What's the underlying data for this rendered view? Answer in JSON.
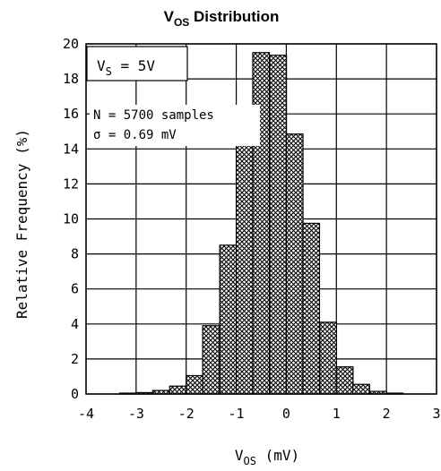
{
  "chart_data": {
    "type": "bar",
    "title": {
      "main": "V",
      "sub": "OS",
      "rest": " Distribution"
    },
    "xlabel": {
      "main": "V",
      "sub": "OS",
      "rest": " (mV)"
    },
    "ylabel": "Relative Frequency (%)",
    "xlim": [
      -4,
      3
    ],
    "ylim": [
      0,
      20
    ],
    "xticks": [
      "-4",
      "-3",
      "-2",
      "-1",
      "0",
      "1",
      "2",
      "3"
    ],
    "yticks": [
      "0",
      "2",
      "4",
      "6",
      "8",
      "10",
      "12",
      "14",
      "16",
      "18",
      "20"
    ],
    "grid": true,
    "bin_width": 0.333,
    "bins": [
      {
        "x0": -3.33,
        "value": 0.05
      },
      {
        "x0": -3.0,
        "value": 0.08
      },
      {
        "x0": -2.67,
        "value": 0.2
      },
      {
        "x0": -2.33,
        "value": 0.45
      },
      {
        "x0": -2.0,
        "value": 1.05
      },
      {
        "x0": -1.67,
        "value": 3.9
      },
      {
        "x0": -1.33,
        "value": 8.5
      },
      {
        "x0": -1.0,
        "value": 15.2
      },
      {
        "x0": -0.67,
        "value": 19.5
      },
      {
        "x0": -0.33,
        "value": 19.35
      },
      {
        "x0": 0.0,
        "value": 14.85
      },
      {
        "x0": 0.33,
        "value": 9.75
      },
      {
        "x0": 0.67,
        "value": 4.1
      },
      {
        "x0": 1.0,
        "value": 1.55
      },
      {
        "x0": 1.33,
        "value": 0.55
      },
      {
        "x0": 1.67,
        "value": 0.15
      },
      {
        "x0": 2.0,
        "value": 0.05
      }
    ],
    "annotations": {
      "supply": {
        "main": "V",
        "sub": "S",
        "rest": " = 5V"
      },
      "samples": "N = 5700 samples",
      "sigma": "σ = 0.69 mV"
    }
  }
}
